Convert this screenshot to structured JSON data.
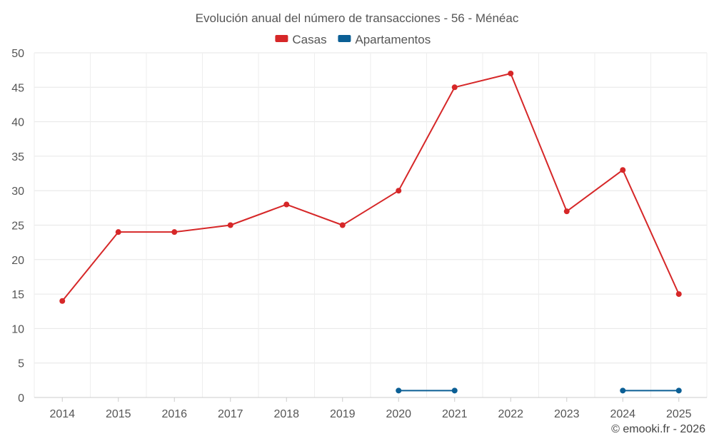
{
  "chart_data": {
    "type": "line",
    "title": "Evolución anual del número de transacciones - 56 - Ménéac",
    "categories": [
      "2014",
      "2015",
      "2016",
      "2017",
      "2018",
      "2019",
      "2020",
      "2021",
      "2022",
      "2023",
      "2024",
      "2025"
    ],
    "series": [
      {
        "name": "Casas",
        "color": "#d62728",
        "values": [
          14,
          24,
          24,
          25,
          28,
          25,
          30,
          45,
          47,
          27,
          33,
          15
        ]
      },
      {
        "name": "Apartamentos",
        "color": "#0b5f95",
        "values": [
          null,
          null,
          null,
          null,
          null,
          null,
          1,
          1,
          null,
          null,
          1,
          1
        ]
      }
    ],
    "ylim": [
      0,
      50
    ],
    "yticks": [
      0,
      5,
      10,
      15,
      20,
      25,
      30,
      35,
      40,
      45,
      50
    ],
    "grid": true,
    "legend": "top-center",
    "xlabel": "",
    "ylabel": ""
  },
  "credit": "© emooki.fr - 2026"
}
